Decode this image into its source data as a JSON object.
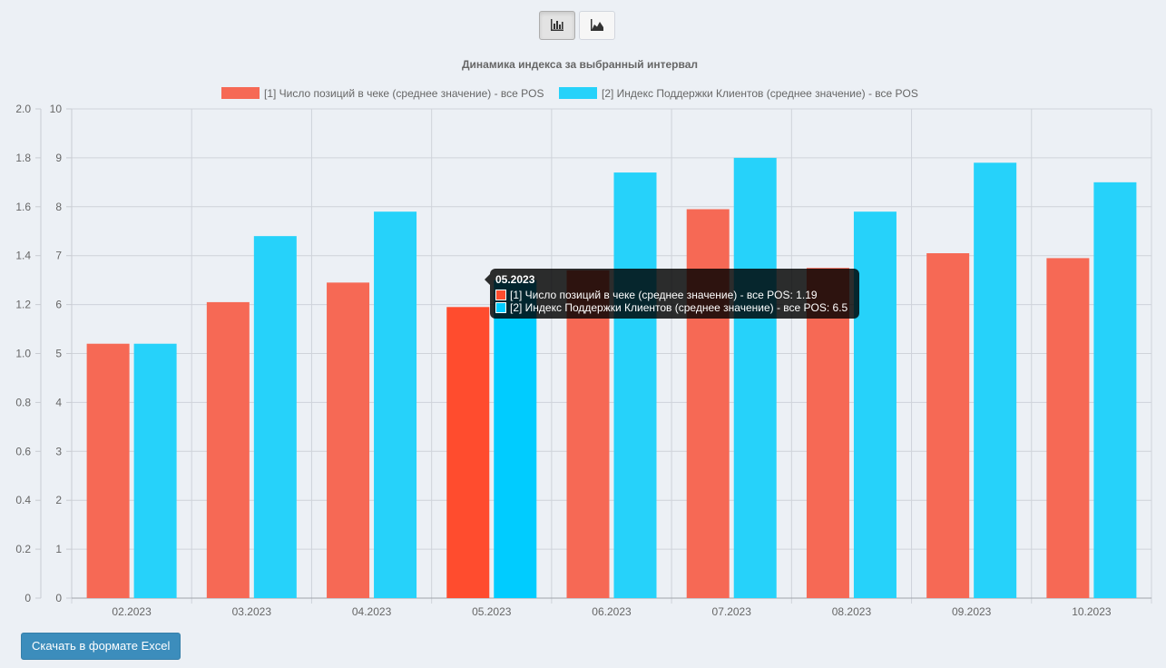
{
  "toolbar": {
    "bar_chart_icon": "bar-chart-icon",
    "area_chart_icon": "area-chart-icon"
  },
  "download_button": {
    "label": "Скачать в формате Excel"
  },
  "tooltip": {
    "title": "05.2023",
    "rows": [
      {
        "label": "[1]  Число позиций в чеке (среднее значение) - все POS: 1.19",
        "color": "#ff4c2e"
      },
      {
        "label": "[2]  Индекс Поддержки Клиентов (среднее значение) - все POS: 6.5",
        "color": "#00ccff"
      }
    ]
  },
  "chart_data": {
    "type": "bar",
    "title": "Динамика индекса за выбранный интервал",
    "categories": [
      "02.2023",
      "03.2023",
      "04.2023",
      "05.2023",
      "06.2023",
      "07.2023",
      "08.2023",
      "09.2023",
      "10.2023"
    ],
    "series": [
      {
        "name": "[1]  Число позиций в чеке (среднее значение) - все POS",
        "color": "#f66955",
        "highlight_color": "#ff4c2e",
        "axis": "left",
        "values": [
          1.04,
          1.21,
          1.29,
          1.19,
          1.34,
          1.59,
          1.35,
          1.41,
          1.39
        ]
      },
      {
        "name": "[2]  Индекс Поддержки Клиентов (среднее значение) - все POS",
        "color": "#26d2fa",
        "highlight_color": "#00ccff",
        "axis": "right",
        "values": [
          5.2,
          7.4,
          7.9,
          6.5,
          8.7,
          9.0,
          7.9,
          8.9,
          8.5
        ]
      }
    ],
    "highlight_index": 3,
    "y_left": {
      "min": 0,
      "max": 2.0,
      "ticks": [
        "0",
        "0.2",
        "0.4",
        "0.6",
        "0.8",
        "1.0",
        "1.2",
        "1.4",
        "1.6",
        "1.8",
        "2.0"
      ]
    },
    "y_right": {
      "min": 0,
      "max": 10,
      "ticks": [
        "0",
        "1",
        "2",
        "3",
        "4",
        "5",
        "6",
        "7",
        "8",
        "9",
        "10"
      ]
    },
    "legend": "top",
    "grid": true
  }
}
